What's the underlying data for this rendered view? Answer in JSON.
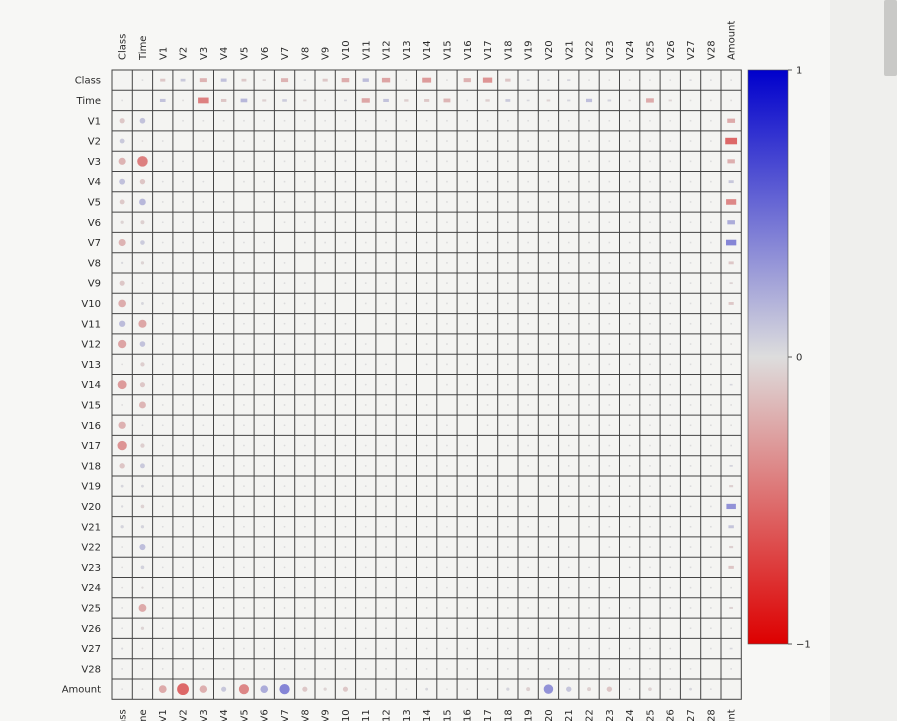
{
  "chart_data": {
    "type": "heatmap",
    "variables": [
      "Class",
      "Time",
      "V1",
      "V2",
      "V3",
      "V4",
      "V5",
      "V6",
      "V7",
      "V8",
      "V9",
      "V10",
      "V11",
      "V12",
      "V13",
      "V14",
      "V15",
      "V16",
      "V17",
      "V18",
      "V19",
      "V20",
      "V21",
      "V22",
      "V23",
      "V24",
      "V25",
      "V26",
      "V27",
      "V28",
      "Amount"
    ],
    "upper_triangle_style": "squares",
    "lower_triangle_style": "circles",
    "grid": true,
    "colorbar": {
      "min": -1,
      "max": 1,
      "ticks": [
        "1",
        "0",
        "−1"
      ],
      "position": "right"
    },
    "colors": {
      "positive": "#0000cc",
      "neutral": "#dddddd",
      "negative": "#dd0000",
      "grid": "#444444",
      "cell": "#f4f4f2"
    },
    "correlations": [
      {
        "row": "Class",
        "col": "V1",
        "value": -0.1
      },
      {
        "row": "Class",
        "col": "V2",
        "value": 0.09
      },
      {
        "row": "Class",
        "col": "V3",
        "value": -0.19
      },
      {
        "row": "Class",
        "col": "V4",
        "value": 0.13
      },
      {
        "row": "Class",
        "col": "V5",
        "value": -0.09
      },
      {
        "row": "Class",
        "col": "V6",
        "value": -0.04
      },
      {
        "row": "Class",
        "col": "V7",
        "value": -0.19
      },
      {
        "row": "Class",
        "col": "V8",
        "value": 0.02
      },
      {
        "row": "Class",
        "col": "V9",
        "value": -0.1
      },
      {
        "row": "Class",
        "col": "V10",
        "value": -0.22
      },
      {
        "row": "Class",
        "col": "V11",
        "value": 0.15
      },
      {
        "row": "Class",
        "col": "V12",
        "value": -0.26
      },
      {
        "row": "Class",
        "col": "V13",
        "value": -0.005
      },
      {
        "row": "Class",
        "col": "V14",
        "value": -0.3
      },
      {
        "row": "Class",
        "col": "V15",
        "value": -0.004
      },
      {
        "row": "Class",
        "col": "V16",
        "value": -0.2
      },
      {
        "row": "Class",
        "col": "V17",
        "value": -0.33
      },
      {
        "row": "Class",
        "col": "V18",
        "value": -0.11
      },
      {
        "row": "Class",
        "col": "V19",
        "value": 0.03
      },
      {
        "row": "Class",
        "col": "V20",
        "value": 0.02
      },
      {
        "row": "Class",
        "col": "V21",
        "value": 0.04
      },
      {
        "row": "Class",
        "col": "V22",
        "value": 0.001
      },
      {
        "row": "Class",
        "col": "V23",
        "value": -0.003
      },
      {
        "row": "Class",
        "col": "V24",
        "value": -0.007
      },
      {
        "row": "Class",
        "col": "V25",
        "value": 0.003
      },
      {
        "row": "Class",
        "col": "V26",
        "value": 0.004
      },
      {
        "row": "Class",
        "col": "V27",
        "value": 0.018
      },
      {
        "row": "Class",
        "col": "V28",
        "value": 0.01
      },
      {
        "row": "Class",
        "col": "Amount",
        "value": 0.006
      },
      {
        "row": "Time",
        "col": "V1",
        "value": 0.12
      },
      {
        "row": "Time",
        "col": "V2",
        "value": -0.01
      },
      {
        "row": "Time",
        "col": "V3",
        "value": -0.42
      },
      {
        "row": "Time",
        "col": "V4",
        "value": -0.11
      },
      {
        "row": "Time",
        "col": "V5",
        "value": 0.17
      },
      {
        "row": "Time",
        "col": "V6",
        "value": -0.06
      },
      {
        "row": "Time",
        "col": "V7",
        "value": 0.08
      },
      {
        "row": "Time",
        "col": "V8",
        "value": -0.04
      },
      {
        "row": "Time",
        "col": "V9",
        "value": -0.01
      },
      {
        "row": "Time",
        "col": "V10",
        "value": 0.03
      },
      {
        "row": "Time",
        "col": "V11",
        "value": -0.25
      },
      {
        "row": "Time",
        "col": "V12",
        "value": 0.12
      },
      {
        "row": "Time",
        "col": "V13",
        "value": -0.07
      },
      {
        "row": "Time",
        "col": "V14",
        "value": -0.1
      },
      {
        "row": "Time",
        "col": "V15",
        "value": -0.18
      },
      {
        "row": "Time",
        "col": "V16",
        "value": 0.01
      },
      {
        "row": "Time",
        "col": "V17",
        "value": -0.07
      },
      {
        "row": "Time",
        "col": "V18",
        "value": 0.09
      },
      {
        "row": "Time",
        "col": "V19",
        "value": 0.03
      },
      {
        "row": "Time",
        "col": "V20",
        "value": -0.05
      },
      {
        "row": "Time",
        "col": "V21",
        "value": 0.04
      },
      {
        "row": "Time",
        "col": "V22",
        "value": 0.14
      },
      {
        "row": "Time",
        "col": "V23",
        "value": 0.05
      },
      {
        "row": "Time",
        "col": "V24",
        "value": -0.02
      },
      {
        "row": "Time",
        "col": "V25",
        "value": -0.23
      },
      {
        "row": "Time",
        "col": "V26",
        "value": -0.04
      },
      {
        "row": "Time",
        "col": "V27",
        "value": -0.005
      },
      {
        "row": "Time",
        "col": "V28",
        "value": -0.009
      },
      {
        "row": "Time",
        "col": "Amount",
        "value": -0.01
      },
      {
        "row": "V1",
        "col": "Amount",
        "value": -0.23
      },
      {
        "row": "V2",
        "col": "Amount",
        "value": -0.53
      },
      {
        "row": "V3",
        "col": "Amount",
        "value": -0.21
      },
      {
        "row": "V4",
        "col": "Amount",
        "value": 0.1
      },
      {
        "row": "V5",
        "col": "Amount",
        "value": -0.39
      },
      {
        "row": "V6",
        "col": "Amount",
        "value": 0.22
      },
      {
        "row": "V7",
        "col": "Amount",
        "value": 0.4
      },
      {
        "row": "V8",
        "col": "Amount",
        "value": -0.1
      },
      {
        "row": "V9",
        "col": "Amount",
        "value": -0.04
      },
      {
        "row": "V10",
        "col": "Amount",
        "value": -0.1
      },
      {
        "row": "V11",
        "col": "Amount",
        "value": 0.0001
      },
      {
        "row": "V12",
        "col": "Amount",
        "value": -0.01
      },
      {
        "row": "V13",
        "col": "Amount",
        "value": 0.005
      },
      {
        "row": "V14",
        "col": "Amount",
        "value": 0.03
      },
      {
        "row": "V15",
        "col": "Amount",
        "value": -0.003
      },
      {
        "row": "V16",
        "col": "Amount",
        "value": -0.004
      },
      {
        "row": "V17",
        "col": "Amount",
        "value": 0.007
      },
      {
        "row": "V18",
        "col": "Amount",
        "value": 0.04
      },
      {
        "row": "V19",
        "col": "Amount",
        "value": -0.06
      },
      {
        "row": "V20",
        "col": "Amount",
        "value": 0.34
      },
      {
        "row": "V21",
        "col": "Amount",
        "value": 0.11
      },
      {
        "row": "V22",
        "col": "Amount",
        "value": -0.06
      },
      {
        "row": "V23",
        "col": "Amount",
        "value": -0.11
      },
      {
        "row": "V24",
        "col": "Amount",
        "value": 0.005
      },
      {
        "row": "V25",
        "col": "Amount",
        "value": -0.05
      },
      {
        "row": "V26",
        "col": "Amount",
        "value": -0.003
      },
      {
        "row": "V27",
        "col": "Amount",
        "value": 0.03
      },
      {
        "row": "V28",
        "col": "Amount",
        "value": 0.01
      }
    ]
  }
}
